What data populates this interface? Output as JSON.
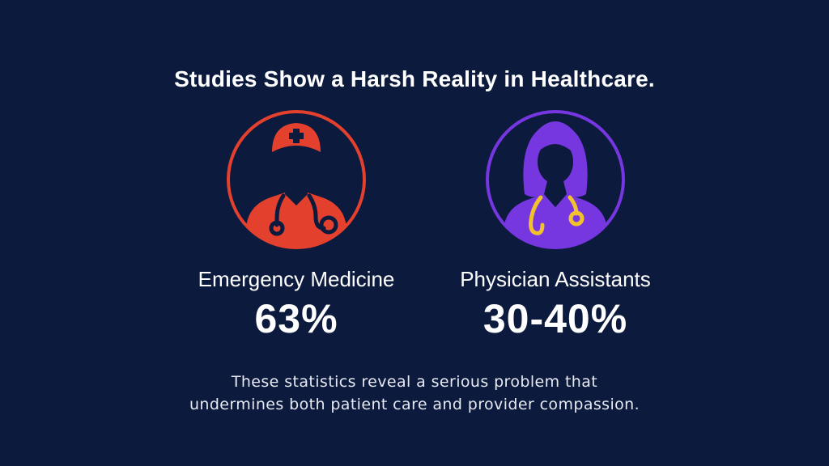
{
  "title": "Studies Show a Harsh Reality in Healthcare.",
  "stats": [
    {
      "label": "Emergency Medicine",
      "value": "63%",
      "icon": "male-doctor-icon",
      "color": "#e4402e"
    },
    {
      "label": "Physician Assistants",
      "value": "30-40%",
      "icon": "female-doctor-icon",
      "color": "#7636e0"
    }
  ],
  "caption": {
    "line1": "These statistics reveal a serious problem that",
    "line2": "undermines both patient care and provider compassion."
  },
  "colors": {
    "background": "#0c1a3d",
    "accent_red": "#e4402e",
    "accent_purple": "#7636e0",
    "stethoscope_yellow": "#f2c12e"
  }
}
